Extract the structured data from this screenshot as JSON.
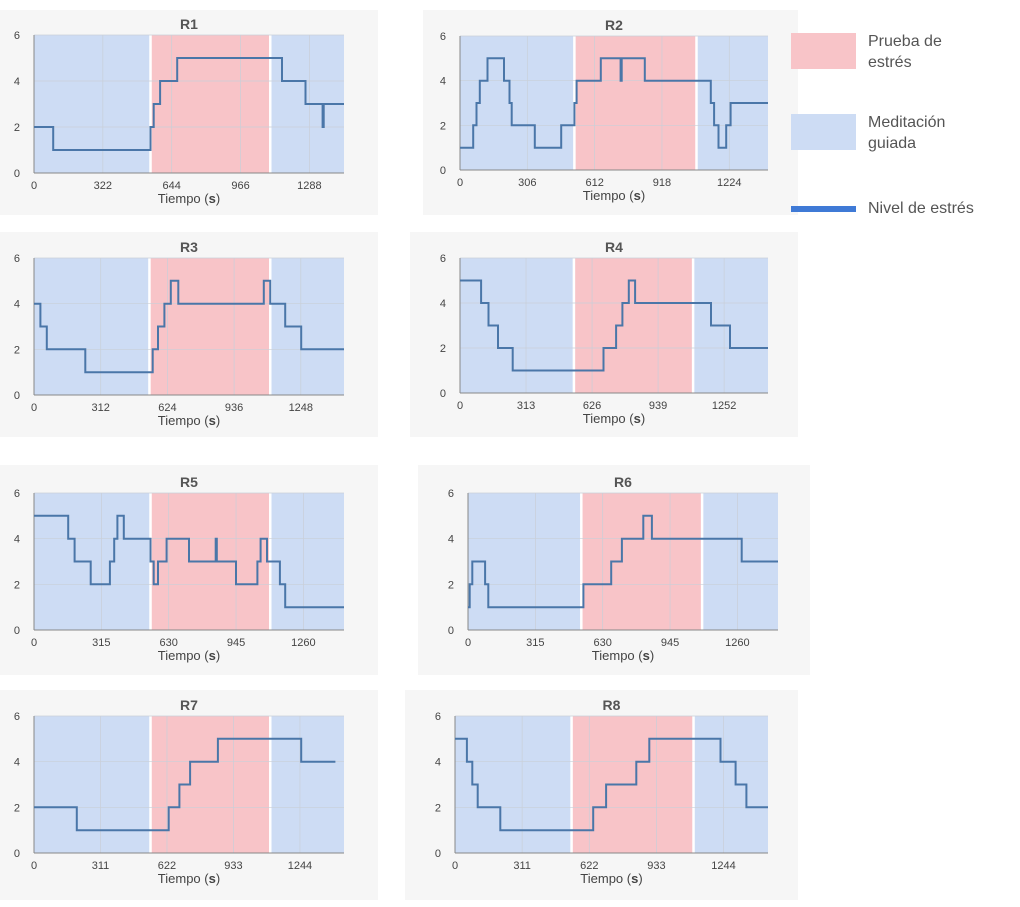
{
  "colors": {
    "meditation": "#cddcf4",
    "stress_test": "#f8c4c8",
    "line": "#4a76a8",
    "grid": "#c9cfd8",
    "panel_bg": "#f6f6f6",
    "separator": "#ffffff"
  },
  "legend": {
    "items": [
      {
        "label": "Prueba de estrés",
        "kind": "stress_test",
        "color": "#f8c4c8"
      },
      {
        "label": "Meditación guiada",
        "kind": "meditation",
        "color": "#cddcf4"
      },
      {
        "label": "Nivel de estrés",
        "kind": "line",
        "color": "#3f7ad6"
      }
    ]
  },
  "chart_data": [
    {
      "type": "line",
      "title": "R1",
      "xlabel": "Tiempo (s)",
      "xlim": [
        0,
        1450
      ],
      "ylim": [
        0,
        6
      ],
      "xticks": [
        0,
        322,
        644,
        966,
        1288
      ],
      "yticks": [
        0,
        2,
        4,
        6
      ],
      "grid": true,
      "regions": [
        {
          "kind": "meditation",
          "x0": 0,
          "x1": 545
        },
        {
          "kind": "stress_test",
          "x0": 545,
          "x1": 1105
        },
        {
          "kind": "meditation",
          "x0": 1105,
          "x1": 1450
        }
      ],
      "series": [
        {
          "x": [
            0,
            90,
            90,
            545,
            545,
            560,
            560,
            590,
            590,
            670,
            670,
            1160,
            1160,
            1270,
            1270,
            1350,
            1350,
            1355,
            1355,
            1450
          ],
          "y": [
            2,
            2,
            1,
            1,
            2,
            2,
            3,
            3,
            4,
            4,
            5,
            5,
            4,
            4,
            3,
            3,
            2,
            2,
            3,
            3
          ]
        }
      ]
    },
    {
      "type": "line",
      "title": "R2",
      "xlabel": "Tiempo (s)",
      "xlim": [
        0,
        1400
      ],
      "ylim": [
        0,
        6
      ],
      "xticks": [
        0,
        306,
        612,
        918,
        1224
      ],
      "yticks": [
        0,
        2,
        4,
        6
      ],
      "grid": true,
      "regions": [
        {
          "kind": "meditation",
          "x0": 0,
          "x1": 520
        },
        {
          "kind": "stress_test",
          "x0": 520,
          "x1": 1075
        },
        {
          "kind": "meditation",
          "x0": 1075,
          "x1": 1400
        }
      ],
      "series": [
        {
          "x": [
            0,
            60,
            60,
            75,
            75,
            90,
            90,
            125,
            125,
            200,
            200,
            225,
            225,
            235,
            235,
            340,
            340,
            460,
            460,
            520,
            520,
            530,
            530,
            640,
            640,
            730,
            730,
            735,
            735,
            840,
            840,
            1140,
            1140,
            1155,
            1155,
            1175,
            1175,
            1210,
            1210,
            1230,
            1230,
            1250,
            1250,
            1400
          ],
          "y": [
            1,
            1,
            2,
            2,
            3,
            3,
            4,
            4,
            5,
            5,
            4,
            4,
            3,
            3,
            2,
            2,
            1,
            1,
            2,
            2,
            3,
            3,
            4,
            4,
            5,
            5,
            4,
            4,
            5,
            5,
            4,
            4,
            3,
            3,
            2,
            2,
            1,
            1,
            2,
            2,
            3,
            3,
            3,
            3
          ]
        }
      ]
    },
    {
      "type": "line",
      "title": "R3",
      "xlabel": "Tiempo (s)",
      "xlim": [
        0,
        1450
      ],
      "ylim": [
        0,
        6
      ],
      "xticks": [
        0,
        312,
        624,
        936,
        1248
      ],
      "yticks": [
        0,
        2,
        4,
        6
      ],
      "grid": true,
      "regions": [
        {
          "kind": "meditation",
          "x0": 0,
          "x1": 540
        },
        {
          "kind": "stress_test",
          "x0": 540,
          "x1": 1105
        },
        {
          "kind": "meditation",
          "x0": 1105,
          "x1": 1450
        }
      ],
      "series": [
        {
          "x": [
            0,
            30,
            30,
            60,
            60,
            240,
            240,
            555,
            555,
            580,
            580,
            610,
            610,
            640,
            640,
            675,
            675,
            1075,
            1075,
            1105,
            1105,
            1175,
            1175,
            1250,
            1250,
            1310,
            1310,
            1450
          ],
          "y": [
            4,
            4,
            3,
            3,
            2,
            2,
            1,
            1,
            2,
            2,
            3,
            3,
            4,
            4,
            5,
            5,
            4,
            4,
            5,
            5,
            4,
            4,
            3,
            3,
            2,
            2,
            2,
            2
          ]
        }
      ]
    },
    {
      "type": "line",
      "title": "R4",
      "xlabel": "Tiempo (s)",
      "xlim": [
        0,
        1460
      ],
      "ylim": [
        0,
        6
      ],
      "xticks": [
        0,
        313,
        626,
        939,
        1252
      ],
      "yticks": [
        0,
        2,
        4,
        6
      ],
      "grid": true,
      "regions": [
        {
          "kind": "meditation",
          "x0": 0,
          "x1": 540
        },
        {
          "kind": "stress_test",
          "x0": 540,
          "x1": 1105
        },
        {
          "kind": "meditation",
          "x0": 1105,
          "x1": 1460
        }
      ],
      "series": [
        {
          "x": [
            0,
            100,
            100,
            135,
            135,
            180,
            180,
            250,
            250,
            680,
            680,
            740,
            740,
            770,
            770,
            800,
            800,
            830,
            830,
            1190,
            1190,
            1280,
            1280,
            1330,
            1330,
            1460
          ],
          "y": [
            5,
            5,
            4,
            4,
            3,
            3,
            2,
            2,
            1,
            1,
            2,
            2,
            3,
            3,
            4,
            4,
            5,
            5,
            4,
            4,
            3,
            3,
            2,
            2,
            2,
            2
          ]
        }
      ]
    },
    {
      "type": "line",
      "title": "R5",
      "xlabel": "Tiempo (s)",
      "xlim": [
        0,
        1450
      ],
      "ylim": [
        0,
        6
      ],
      "xticks": [
        0,
        315,
        630,
        945,
        1260
      ],
      "yticks": [
        0,
        2,
        4,
        6
      ],
      "grid": true,
      "regions": [
        {
          "kind": "meditation",
          "x0": 0,
          "x1": 545
        },
        {
          "kind": "stress_test",
          "x0": 545,
          "x1": 1105
        },
        {
          "kind": "meditation",
          "x0": 1105,
          "x1": 1450
        }
      ],
      "series": [
        {
          "x": [
            0,
            160,
            160,
            190,
            190,
            265,
            265,
            355,
            355,
            375,
            375,
            390,
            390,
            420,
            420,
            545,
            545,
            560,
            560,
            580,
            580,
            620,
            620,
            725,
            725,
            850,
            850,
            855,
            855,
            945,
            945,
            1045,
            1045,
            1060,
            1060,
            1090,
            1090,
            1150,
            1150,
            1175,
            1175,
            1200,
            1200,
            1450
          ],
          "y": [
            5,
            5,
            4,
            4,
            3,
            3,
            2,
            2,
            3,
            3,
            4,
            4,
            5,
            5,
            4,
            4,
            3,
            3,
            2,
            2,
            3,
            3,
            4,
            4,
            3,
            3,
            4,
            4,
            3,
            3,
            2,
            2,
            3,
            3,
            4,
            4,
            3,
            3,
            2,
            2,
            1,
            1,
            1,
            1
          ]
        }
      ]
    },
    {
      "type": "line",
      "title": "R6",
      "xlabel": "Tiempo (s)",
      "xlim": [
        0,
        1450
      ],
      "ylim": [
        0,
        6
      ],
      "xticks": [
        0,
        315,
        630,
        945,
        1260
      ],
      "yticks": [
        0,
        2,
        4,
        6
      ],
      "grid": true,
      "regions": [
        {
          "kind": "meditation",
          "x0": 0,
          "x1": 530
        },
        {
          "kind": "stress_test",
          "x0": 530,
          "x1": 1095
        },
        {
          "kind": "meditation",
          "x0": 1095,
          "x1": 1450
        }
      ],
      "series": [
        {
          "x": [
            0,
            8,
            8,
            20,
            20,
            80,
            80,
            95,
            95,
            540,
            540,
            670,
            670,
            720,
            720,
            760,
            760,
            820,
            820,
            860,
            860,
            1280,
            1280,
            1350,
            1350,
            1450
          ],
          "y": [
            1,
            1,
            2,
            2,
            3,
            3,
            2,
            2,
            1,
            1,
            2,
            2,
            3,
            3,
            4,
            4,
            4,
            4,
            5,
            5,
            4,
            4,
            3,
            3,
            3,
            3
          ]
        }
      ]
    },
    {
      "type": "line",
      "title": "R7",
      "xlabel": "Tiempo (s)",
      "xlim": [
        0,
        1450
      ],
      "ylim": [
        0,
        6
      ],
      "xticks": [
        0,
        311,
        622,
        933,
        1244
      ],
      "yticks": [
        0,
        2,
        4,
        6
      ],
      "grid": true,
      "regions": [
        {
          "kind": "meditation",
          "x0": 0,
          "x1": 545
        },
        {
          "kind": "stress_test",
          "x0": 545,
          "x1": 1105
        },
        {
          "kind": "meditation",
          "x0": 1105,
          "x1": 1450
        }
      ],
      "series": [
        {
          "x": [
            0,
            200,
            200,
            630,
            630,
            680,
            680,
            730,
            730,
            780,
            780,
            860,
            860,
            860,
            860,
            1250,
            1250,
            1410
          ],
          "y": [
            2,
            2,
            1,
            1,
            2,
            2,
            3,
            3,
            4,
            4,
            4,
            4,
            5,
            5,
            5,
            5,
            4,
            4
          ]
        }
      ]
    },
    {
      "type": "line",
      "title": "R8",
      "xlabel": "Tiempo (s)",
      "xlim": [
        0,
        1450
      ],
      "ylim": [
        0,
        6
      ],
      "xticks": [
        0,
        311,
        622,
        933,
        1244
      ],
      "yticks": [
        0,
        2,
        4,
        6
      ],
      "grid": true,
      "regions": [
        {
          "kind": "meditation",
          "x0": 0,
          "x1": 540
        },
        {
          "kind": "stress_test",
          "x0": 540,
          "x1": 1105
        },
        {
          "kind": "meditation",
          "x0": 1105,
          "x1": 1450
        }
      ],
      "series": [
        {
          "x": [
            0,
            55,
            55,
            80,
            80,
            105,
            105,
            210,
            210,
            640,
            640,
            700,
            700,
            840,
            840,
            900,
            900,
            1230,
            1230,
            1300,
            1300,
            1350,
            1350,
            1450
          ],
          "y": [
            5,
            5,
            4,
            4,
            3,
            3,
            2,
            2,
            1,
            1,
            2,
            2,
            3,
            3,
            4,
            4,
            5,
            5,
            4,
            4,
            3,
            3,
            2,
            2
          ]
        }
      ]
    }
  ]
}
